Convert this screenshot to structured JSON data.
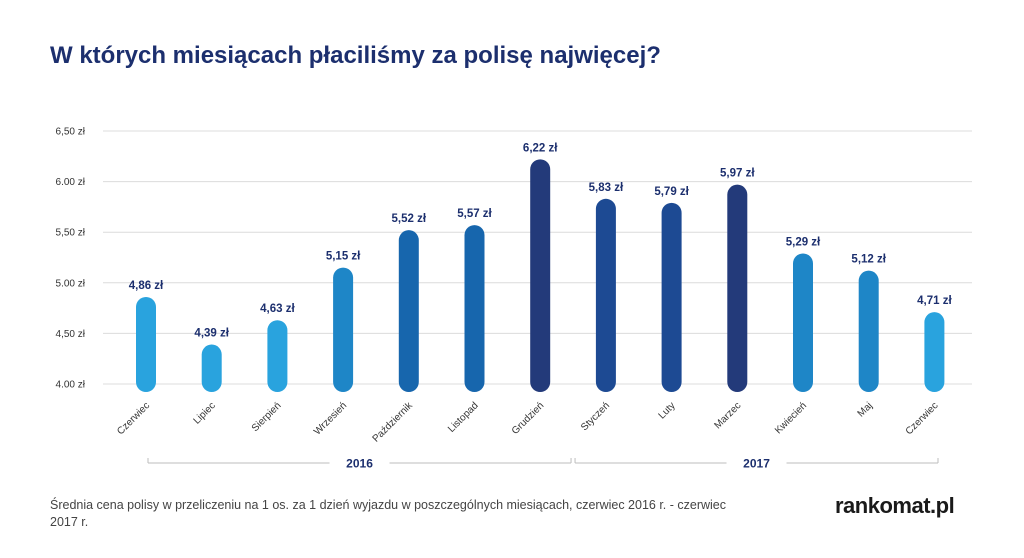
{
  "title": "W których miesiącach płaciliśmy za polisę najwięcej?",
  "footnote": "Średnia cena polisy w przeliczeniu na 1 os. za 1 dzień wyjazdu w poszczególnych miesiącach, czerwiec 2016 r. - czerwiec 2017 r.",
  "brand": "rankomat.pl",
  "chart_data": {
    "type": "bar",
    "title": "W których miesiącach płaciliśmy za polisę najwięcej?",
    "xlabel": "",
    "ylabel": "",
    "ylim": [
      4.0,
      6.5
    ],
    "grid": true,
    "y_ticks": [
      "6,50 zł",
      "6.00 zł",
      "5,50 zł",
      "5.00 zł",
      "4,50 zł",
      "4.00 zł"
    ],
    "y_tick_values": [
      6.5,
      6.0,
      5.5,
      5.0,
      4.5,
      4.0
    ],
    "categories": [
      "Czerwiec",
      "Lipiec",
      "Sierpień",
      "Wrzesień",
      "Październik",
      "Listopad",
      "Grudzień",
      "Styczeń",
      "Luty",
      "Marzec",
      "Kwiecień",
      "Maj",
      "Czerwiec"
    ],
    "values": [
      4.86,
      4.39,
      4.63,
      5.15,
      5.52,
      5.57,
      6.22,
      5.83,
      5.79,
      5.97,
      5.29,
      5.12,
      4.71
    ],
    "value_labels": [
      "4,86 zł",
      "4,39 zł",
      "4,63 zł",
      "5,15 zł",
      "5,52 zł",
      "5,57 zł",
      "6,22 zł",
      "5,83 zł",
      "5,79 zł",
      "5,97 zł",
      "5,29 zł",
      "5,12 zł",
      "4,71 zł"
    ],
    "bar_colors": [
      "#29a3de",
      "#29a3de",
      "#29a3de",
      "#1e86c7",
      "#1766ad",
      "#1766ad",
      "#233a7a",
      "#1d4a93",
      "#1d4a93",
      "#233a7a",
      "#1e86c7",
      "#1e86c7",
      "#29a3de"
    ],
    "year_groups": [
      {
        "label": "2016",
        "first": 0,
        "last": 6
      },
      {
        "label": "2017",
        "first": 7,
        "last": 12
      }
    ]
  }
}
